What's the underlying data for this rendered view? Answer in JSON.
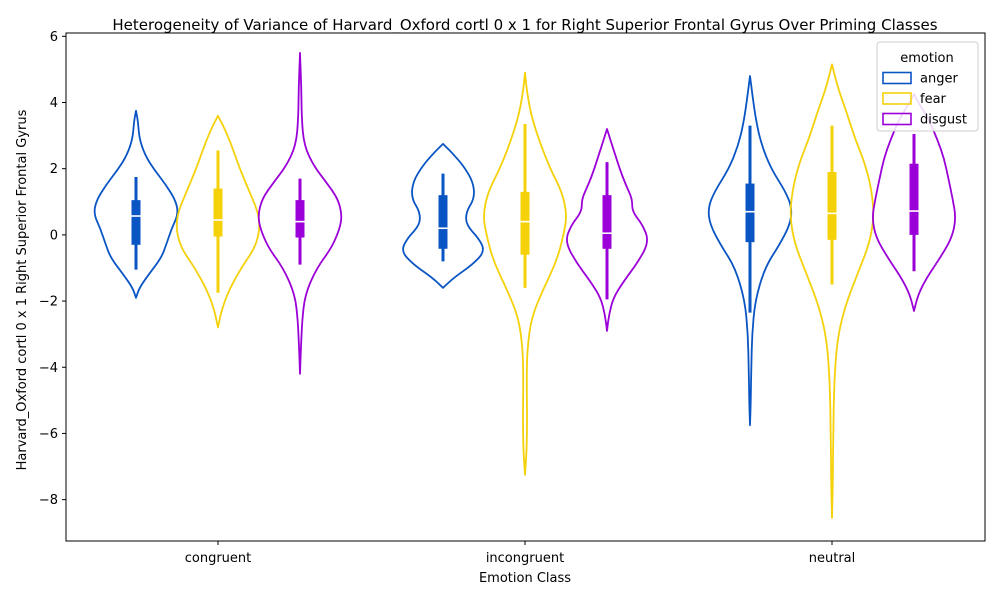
{
  "chart_data": {
    "type": "violin",
    "title": "Heterogeneity of Variance of Harvard_Oxford cortl 0 x 1 for Right Superior Frontal Gyrus Over Priming Classes",
    "xlabel": "Emotion Class",
    "ylabel": "Harvard_Oxford cortl 0 x 1 Right Superior Frontal Gyrus",
    "categories": [
      "congruent",
      "incongruent",
      "neutral"
    ],
    "ylim": [
      -9.25,
      6.1
    ],
    "yticks": [
      -8,
      -6,
      -4,
      -2,
      0,
      2,
      4,
      6
    ],
    "grid": false,
    "legend": {
      "title": "emotion",
      "placement": "top-right",
      "entries": [
        "anger",
        "fear",
        "disgust"
      ]
    },
    "series": [
      {
        "name": "anger",
        "color": "#0a55c4",
        "groups": [
          {
            "category": "congruent",
            "min": -1.9,
            "q1": -0.3,
            "median": 0.57,
            "q3": 1.05,
            "whisker_low": -1.05,
            "whisker_high": 1.75,
            "max": 3.75,
            "profile": [
              [
                -1.9,
                0.0
              ],
              [
                -1.6,
                0.08
              ],
              [
                -1.2,
                0.3
              ],
              [
                -0.7,
                0.6
              ],
              [
                -0.3,
                0.72
              ],
              [
                0.2,
                0.85
              ],
              [
                0.6,
                1.0
              ],
              [
                1.0,
                0.96
              ],
              [
                1.5,
                0.72
              ],
              [
                2.0,
                0.42
              ],
              [
                2.4,
                0.22
              ],
              [
                2.9,
                0.08
              ],
              [
                3.4,
                0.05
              ],
              [
                3.75,
                0.0
              ]
            ]
          },
          {
            "category": "incongruent",
            "min": -1.6,
            "q1": -0.42,
            "median": 0.2,
            "q3": 1.2,
            "whisker_low": -0.8,
            "whisker_high": 1.85,
            "max": 2.75,
            "profile": [
              [
                -1.6,
                0.0
              ],
              [
                -1.3,
                0.25
              ],
              [
                -0.9,
                0.7
              ],
              [
                -0.5,
                1.0
              ],
              [
                -0.1,
                0.85
              ],
              [
                0.3,
                0.55
              ],
              [
                0.7,
                0.55
              ],
              [
                1.1,
                0.75
              ],
              [
                1.6,
                0.72
              ],
              [
                2.1,
                0.48
              ],
              [
                2.5,
                0.2
              ],
              [
                2.75,
                0.0
              ]
            ]
          },
          {
            "category": "neutral",
            "min": -5.75,
            "q1": -0.22,
            "median": 0.7,
            "q3": 1.55,
            "whisker_low": -2.35,
            "whisker_high": 3.3,
            "max": 4.8,
            "profile": [
              [
                -5.75,
                0.0
              ],
              [
                -5.0,
                0.02
              ],
              [
                -4.0,
                0.03
              ],
              [
                -3.0,
                0.05
              ],
              [
                -2.0,
                0.12
              ],
              [
                -1.0,
                0.35
              ],
              [
                -0.3,
                0.7
              ],
              [
                0.3,
                0.95
              ],
              [
                0.8,
                1.0
              ],
              [
                1.3,
                0.85
              ],
              [
                2.0,
                0.5
              ],
              [
                2.7,
                0.28
              ],
              [
                3.4,
                0.15
              ],
              [
                4.2,
                0.06
              ],
              [
                4.8,
                0.0
              ]
            ]
          }
        ]
      },
      {
        "name": "fear",
        "color": "#f5d10a",
        "groups": [
          {
            "category": "congruent",
            "min": -2.8,
            "q1": -0.05,
            "median": 0.45,
            "q3": 1.4,
            "whisker_low": -1.75,
            "whisker_high": 2.55,
            "max": 3.6,
            "profile": [
              [
                -2.8,
                0.0
              ],
              [
                -2.3,
                0.08
              ],
              [
                -1.7,
                0.25
              ],
              [
                -1.0,
                0.55
              ],
              [
                -0.4,
                0.88
              ],
              [
                0.2,
                1.0
              ],
              [
                0.7,
                0.95
              ],
              [
                1.3,
                0.75
              ],
              [
                1.9,
                0.55
              ],
              [
                2.5,
                0.38
              ],
              [
                3.1,
                0.2
              ],
              [
                3.6,
                0.0
              ]
            ]
          },
          {
            "category": "incongruent",
            "min": -7.25,
            "q1": -0.6,
            "median": 0.4,
            "q3": 1.3,
            "whisker_low": -1.6,
            "whisker_high": 3.35,
            "max": 4.9,
            "profile": [
              [
                -7.25,
                0.0
              ],
              [
                -6.5,
                0.04
              ],
              [
                -5.5,
                0.05
              ],
              [
                -4.5,
                0.04
              ],
              [
                -3.5,
                0.05
              ],
              [
                -2.5,
                0.15
              ],
              [
                -1.6,
                0.45
              ],
              [
                -0.8,
                0.75
              ],
              [
                0.0,
                0.92
              ],
              [
                0.6,
                1.0
              ],
              [
                1.3,
                0.88
              ],
              [
                2.0,
                0.6
              ],
              [
                2.8,
                0.35
              ],
              [
                3.6,
                0.15
              ],
              [
                4.3,
                0.05
              ],
              [
                4.9,
                0.0
              ]
            ]
          },
          {
            "category": "neutral",
            "min": -8.55,
            "q1": -0.15,
            "median": 0.65,
            "q3": 1.9,
            "whisker_low": -1.5,
            "whisker_high": 3.3,
            "max": 5.15,
            "profile": [
              [
                -8.55,
                0.0
              ],
              [
                -7.5,
                0.02
              ],
              [
                -6.0,
                0.03
              ],
              [
                -4.5,
                0.05
              ],
              [
                -3.2,
                0.12
              ],
              [
                -2.2,
                0.3
              ],
              [
                -1.2,
                0.6
              ],
              [
                -0.3,
                0.88
              ],
              [
                0.5,
                1.0
              ],
              [
                1.3,
                0.95
              ],
              [
                2.1,
                0.8
              ],
              [
                2.9,
                0.55
              ],
              [
                3.7,
                0.35
              ],
              [
                4.4,
                0.15
              ],
              [
                5.15,
                0.0
              ]
            ]
          }
        ]
      },
      {
        "name": "disgust",
        "color": "#9b00d8",
        "groups": [
          {
            "category": "congruent",
            "min": -4.2,
            "q1": -0.08,
            "median": 0.4,
            "q3": 1.05,
            "whisker_low": -0.9,
            "whisker_high": 1.7,
            "max": 5.5,
            "profile": [
              [
                -4.2,
                0.0
              ],
              [
                -3.5,
                0.02
              ],
              [
                -2.6,
                0.05
              ],
              [
                -1.8,
                0.12
              ],
              [
                -1.0,
                0.4
              ],
              [
                -0.4,
                0.75
              ],
              [
                0.2,
                0.95
              ],
              [
                0.6,
                1.0
              ],
              [
                1.1,
                0.9
              ],
              [
                1.6,
                0.62
              ],
              [
                2.1,
                0.32
              ],
              [
                2.7,
                0.1
              ],
              [
                3.5,
                0.04
              ],
              [
                4.5,
                0.03
              ],
              [
                5.5,
                0.0
              ]
            ]
          },
          {
            "category": "incongruent",
            "min": -2.9,
            "q1": -0.42,
            "median": 0.05,
            "q3": 1.2,
            "whisker_low": -1.95,
            "whisker_high": 2.2,
            "max": 3.2,
            "profile": [
              [
                -2.9,
                0.0
              ],
              [
                -2.4,
                0.05
              ],
              [
                -1.9,
                0.15
              ],
              [
                -1.4,
                0.4
              ],
              [
                -0.8,
                0.75
              ],
              [
                -0.2,
                1.0
              ],
              [
                0.3,
                0.85
              ],
              [
                0.7,
                0.6
              ],
              [
                1.1,
                0.6
              ],
              [
                1.5,
                0.45
              ],
              [
                2.0,
                0.3
              ],
              [
                2.6,
                0.15
              ],
              [
                3.2,
                0.0
              ]
            ]
          },
          {
            "category": "neutral",
            "min": -2.3,
            "q1": 0.0,
            "median": 0.72,
            "q3": 2.15,
            "whisker_low": -1.1,
            "whisker_high": 3.05,
            "max": 4.25,
            "profile": [
              [
                -2.3,
                0.0
              ],
              [
                -1.8,
                0.1
              ],
              [
                -1.3,
                0.3
              ],
              [
                -0.7,
                0.62
              ],
              [
                -0.1,
                0.9
              ],
              [
                0.5,
                1.0
              ],
              [
                1.1,
                0.92
              ],
              [
                1.7,
                0.82
              ],
              [
                2.3,
                0.72
              ],
              [
                2.9,
                0.55
              ],
              [
                3.5,
                0.35
              ],
              [
                3.9,
                0.15
              ],
              [
                4.25,
                0.0
              ]
            ]
          }
        ]
      }
    ]
  }
}
